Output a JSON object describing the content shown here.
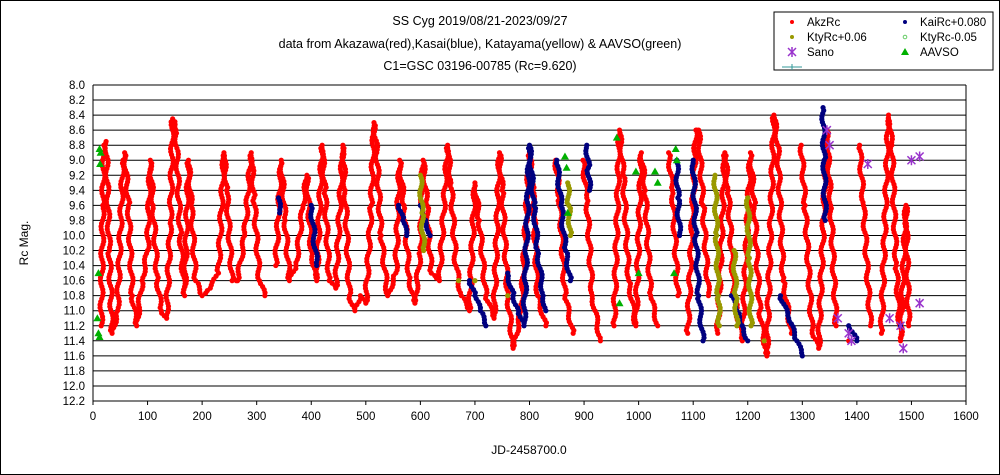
{
  "chart_data": {
    "type": "scatter",
    "title": [
      "SS Cyg 2019/08/21-2023/09/27",
      "data from Akazawa(red),Kasai(blue), Katayama(yellow) & AAVSO(green)",
      "C1=GSC 03196-00785 (Rc=9.620)"
    ],
    "xlabel": "JD-2458700.0",
    "ylabel": "Rc Mag.",
    "xlim": [
      0,
      1600
    ],
    "ylim": [
      8.0,
      12.2
    ],
    "y_inverted": true,
    "grid": "horizontal",
    "legend_position": "top-right",
    "xticks": [
      "0",
      "100",
      "200",
      "300",
      "400",
      "500",
      "600",
      "700",
      "800",
      "900",
      "1000",
      "1100",
      "1200",
      "1300",
      "1400",
      "1500",
      "1600"
    ],
    "yticks": [
      "8.0",
      "8.2",
      "8.4",
      "8.6",
      "8.8",
      "9.0",
      "9.2",
      "9.4",
      "9.6",
      "9.8",
      "10.0",
      "10.2",
      "10.4",
      "10.6",
      "10.8",
      "11.0",
      "11.2",
      "11.4",
      "11.6",
      "11.8",
      "12.0",
      "12.2"
    ],
    "series": [
      {
        "name": "AkzRc",
        "color": "#ff0000",
        "marker": "dot",
        "points": [
          [
            15,
            11.2
          ],
          [
            18,
            9.6
          ],
          [
            20,
            8.8
          ],
          [
            24,
            8.75
          ],
          [
            30,
            10.2
          ],
          [
            35,
            11.3
          ],
          [
            45,
            11.0
          ],
          [
            55,
            9.0
          ],
          [
            58,
            8.9
          ],
          [
            65,
            9.6
          ],
          [
            72,
            10.8
          ],
          [
            80,
            11.2
          ],
          [
            90,
            10.6
          ],
          [
            100,
            10.2
          ],
          [
            105,
            9.0
          ],
          [
            110,
            9.6
          ],
          [
            118,
            10.6
          ],
          [
            125,
            11.0
          ],
          [
            135,
            11.1
          ],
          [
            142,
            9.8
          ],
          [
            146,
            8.45
          ],
          [
            152,
            8.6
          ],
          [
            160,
            10.0
          ],
          [
            168,
            10.8
          ],
          [
            175,
            9.0
          ],
          [
            180,
            9.6
          ],
          [
            188,
            10.6
          ],
          [
            200,
            10.8
          ],
          [
            215,
            10.7
          ],
          [
            230,
            10.5
          ],
          [
            240,
            8.9
          ],
          [
            245,
            9.4
          ],
          [
            255,
            10.6
          ],
          [
            265,
            10.6
          ],
          [
            278,
            10.0
          ],
          [
            290,
            8.9
          ],
          [
            295,
            9.5
          ],
          [
            305,
            10.6
          ],
          [
            315,
            10.8
          ],
          [
            335,
            10.4
          ],
          [
            345,
            9.0
          ],
          [
            352,
            9.8
          ],
          [
            360,
            10.6
          ],
          [
            372,
            10.4
          ],
          [
            385,
            9.6
          ],
          [
            392,
            9.2
          ],
          [
            400,
            10.2
          ],
          [
            410,
            10.6
          ],
          [
            420,
            8.8
          ],
          [
            425,
            9.4
          ],
          [
            433,
            10.6
          ],
          [
            445,
            10.7
          ],
          [
            458,
            8.8
          ],
          [
            462,
            9.4
          ],
          [
            470,
            10.8
          ],
          [
            480,
            11.0
          ],
          [
            490,
            10.8
          ],
          [
            500,
            10.9
          ],
          [
            510,
            9.6
          ],
          [
            515,
            8.5
          ],
          [
            520,
            8.9
          ],
          [
            528,
            10.0
          ],
          [
            540,
            10.8
          ],
          [
            555,
            10.5
          ],
          [
            562,
            9.0
          ],
          [
            570,
            9.6
          ],
          [
            580,
            10.6
          ],
          [
            590,
            10.9
          ],
          [
            600,
            10.2
          ],
          [
            605,
            9.0
          ],
          [
            612,
            9.6
          ],
          [
            620,
            10.5
          ],
          [
            635,
            10.6
          ],
          [
            650,
            8.8
          ],
          [
            656,
            9.3
          ],
          [
            665,
            10.4
          ],
          [
            675,
            10.8
          ],
          [
            690,
            11.0
          ],
          [
            700,
            9.3
          ],
          [
            708,
            9.8
          ],
          [
            720,
            10.8
          ],
          [
            735,
            11.1
          ],
          [
            745,
            8.9
          ],
          [
            750,
            9.4
          ],
          [
            760,
            10.8
          ],
          [
            770,
            11.5
          ],
          [
            785,
            11.0
          ],
          [
            800,
            8.9
          ],
          [
            806,
            9.4
          ],
          [
            815,
            10.8
          ],
          [
            830,
            11.2
          ],
          [
            848,
            9.0
          ],
          [
            855,
            9.5
          ],
          [
            865,
            10.8
          ],
          [
            880,
            11.3
          ],
          [
            898,
            9.0
          ],
          [
            905,
            9.5
          ],
          [
            915,
            10.8
          ],
          [
            930,
            11.4
          ],
          [
            955,
            11.2
          ],
          [
            965,
            8.6
          ],
          [
            972,
            9.2
          ],
          [
            982,
            10.6
          ],
          [
            995,
            11.2
          ],
          [
            1005,
            8.9
          ],
          [
            1012,
            9.4
          ],
          [
            1022,
            10.8
          ],
          [
            1035,
            11.2
          ],
          [
            1055,
            8.9
          ],
          [
            1062,
            9.4
          ],
          [
            1072,
            10.8
          ],
          [
            1090,
            11.3
          ],
          [
            1105,
            8.6
          ],
          [
            1110,
            8.6
          ],
          [
            1118,
            9.6
          ],
          [
            1128,
            10.8
          ],
          [
            1145,
            11.3
          ],
          [
            1158,
            8.9
          ],
          [
            1164,
            9.4
          ],
          [
            1175,
            10.8
          ],
          [
            1190,
            11.4
          ],
          [
            1205,
            8.9
          ],
          [
            1212,
            9.6
          ],
          [
            1222,
            11.0
          ],
          [
            1235,
            11.6
          ],
          [
            1248,
            8.4
          ],
          [
            1255,
            8.8
          ],
          [
            1265,
            10.6
          ],
          [
            1280,
            11.3
          ],
          [
            1298,
            8.8
          ],
          [
            1305,
            9.6
          ],
          [
            1318,
            11.3
          ],
          [
            1330,
            11.5
          ],
          [
            1345,
            8.6
          ],
          [
            1352,
            9.6
          ],
          [
            1362,
            11.2
          ],
          [
            1385,
            11.4
          ],
          [
            1405,
            8.8
          ],
          [
            1412,
            9.6
          ],
          [
            1425,
            11.2
          ],
          [
            1445,
            11.3
          ],
          [
            1458,
            8.4
          ],
          [
            1464,
            8.8
          ],
          [
            1472,
            10.4
          ],
          [
            1480,
            11.4
          ],
          [
            1490,
            9.6
          ],
          [
            1495,
            11.2
          ]
        ]
      },
      {
        "name": "KaiRc+0.080",
        "color": "#00007f",
        "marker": "dot",
        "points": [
          [
            340,
            9.5
          ],
          [
            342,
            9.7
          ],
          [
            400,
            9.6
          ],
          [
            405,
            10.0
          ],
          [
            410,
            10.4
          ],
          [
            560,
            9.6
          ],
          [
            568,
            9.8
          ],
          [
            575,
            10.0
          ],
          [
            600,
            9.6
          ],
          [
            610,
            9.8
          ],
          [
            618,
            10.0
          ],
          [
            690,
            10.6
          ],
          [
            700,
            10.8
          ],
          [
            710,
            11.0
          ],
          [
            720,
            11.2
          ],
          [
            760,
            10.5
          ],
          [
            770,
            10.8
          ],
          [
            780,
            11.0
          ],
          [
            790,
            11.2
          ],
          [
            800,
            8.8
          ],
          [
            808,
            9.6
          ],
          [
            815,
            10.2
          ],
          [
            825,
            10.8
          ],
          [
            830,
            11.0
          ],
          [
            850,
            9.0
          ],
          [
            858,
            9.6
          ],
          [
            866,
            10.2
          ],
          [
            875,
            10.6
          ],
          [
            905,
            8.8
          ],
          [
            908,
            9.1
          ],
          [
            910,
            9.4
          ],
          [
            1070,
            9.0
          ],
          [
            1072,
            9.5
          ],
          [
            1075,
            10.0
          ],
          [
            1100,
            9.0
          ],
          [
            1105,
            10.0
          ],
          [
            1110,
            10.8
          ],
          [
            1118,
            11.4
          ],
          [
            1170,
            10.8
          ],
          [
            1180,
            11.0
          ],
          [
            1190,
            11.2
          ],
          [
            1200,
            11.4
          ],
          [
            1260,
            10.8
          ],
          [
            1275,
            11.1
          ],
          [
            1290,
            11.4
          ],
          [
            1300,
            11.6
          ],
          [
            1338,
            8.3
          ],
          [
            1340,
            9.0
          ],
          [
            1342,
            9.8
          ],
          [
            1385,
            11.2
          ],
          [
            1400,
            11.4
          ],
          [
            1480,
            11.2
          ]
        ]
      },
      {
        "name": "KtyRc+0.06",
        "color": "#999900",
        "marker": "dot",
        "points": [
          [
            600,
            9.2
          ],
          [
            603,
            9.7
          ],
          [
            606,
            10.2
          ],
          [
            670,
            10.6
          ],
          [
            700,
            10.6
          ],
          [
            760,
            10.8
          ],
          [
            870,
            9.3
          ],
          [
            872,
            9.6
          ],
          [
            875,
            10.0
          ],
          [
            1140,
            9.2
          ],
          [
            1143,
            10.0
          ],
          [
            1146,
            10.8
          ],
          [
            1148,
            11.2
          ],
          [
            1175,
            10.2
          ],
          [
            1178,
            10.8
          ],
          [
            1180,
            11.2
          ],
          [
            1200,
            9.5
          ],
          [
            1203,
            10.3
          ],
          [
            1206,
            11.2
          ],
          [
            1230,
            11.4
          ]
        ]
      },
      {
        "name": "KtyRc-0.05",
        "color": "#66cc66",
        "marker": "small-dot",
        "points": []
      },
      {
        "name": "Sano",
        "color": "#9933cc",
        "marker": "x",
        "points": [
          [
            1345,
            8.6
          ],
          [
            1350,
            8.8
          ],
          [
            1365,
            11.1
          ],
          [
            1385,
            11.3
          ],
          [
            1390,
            11.4
          ],
          [
            1420,
            9.05
          ],
          [
            1460,
            11.1
          ],
          [
            1480,
            11.2
          ],
          [
            1485,
            11.5
          ],
          [
            1500,
            9.0
          ],
          [
            1515,
            8.95
          ],
          [
            1515,
            10.9
          ]
        ]
      },
      {
        "name": "AAVSO",
        "color": "#00b000",
        "marker": "triangle",
        "points": [
          [
            12,
            8.85
          ],
          [
            14,
            8.9
          ],
          [
            13,
            9.05
          ],
          [
            10,
            10.5
          ],
          [
            8,
            11.1
          ],
          [
            10,
            11.3
          ],
          [
            12,
            11.35
          ],
          [
            865,
            8.95
          ],
          [
            868,
            9.1
          ],
          [
            870,
            9.7
          ],
          [
            960,
            8.7
          ],
          [
            965,
            10.9
          ],
          [
            995,
            9.15
          ],
          [
            1000,
            10.5
          ],
          [
            1030,
            9.15
          ],
          [
            1035,
            9.3
          ],
          [
            1065,
            10.5
          ],
          [
            1068,
            8.85
          ],
          [
            1070,
            9.0
          ]
        ]
      },
      {
        "name": "",
        "color": "#339999",
        "marker": "cross-line",
        "points": []
      }
    ]
  }
}
